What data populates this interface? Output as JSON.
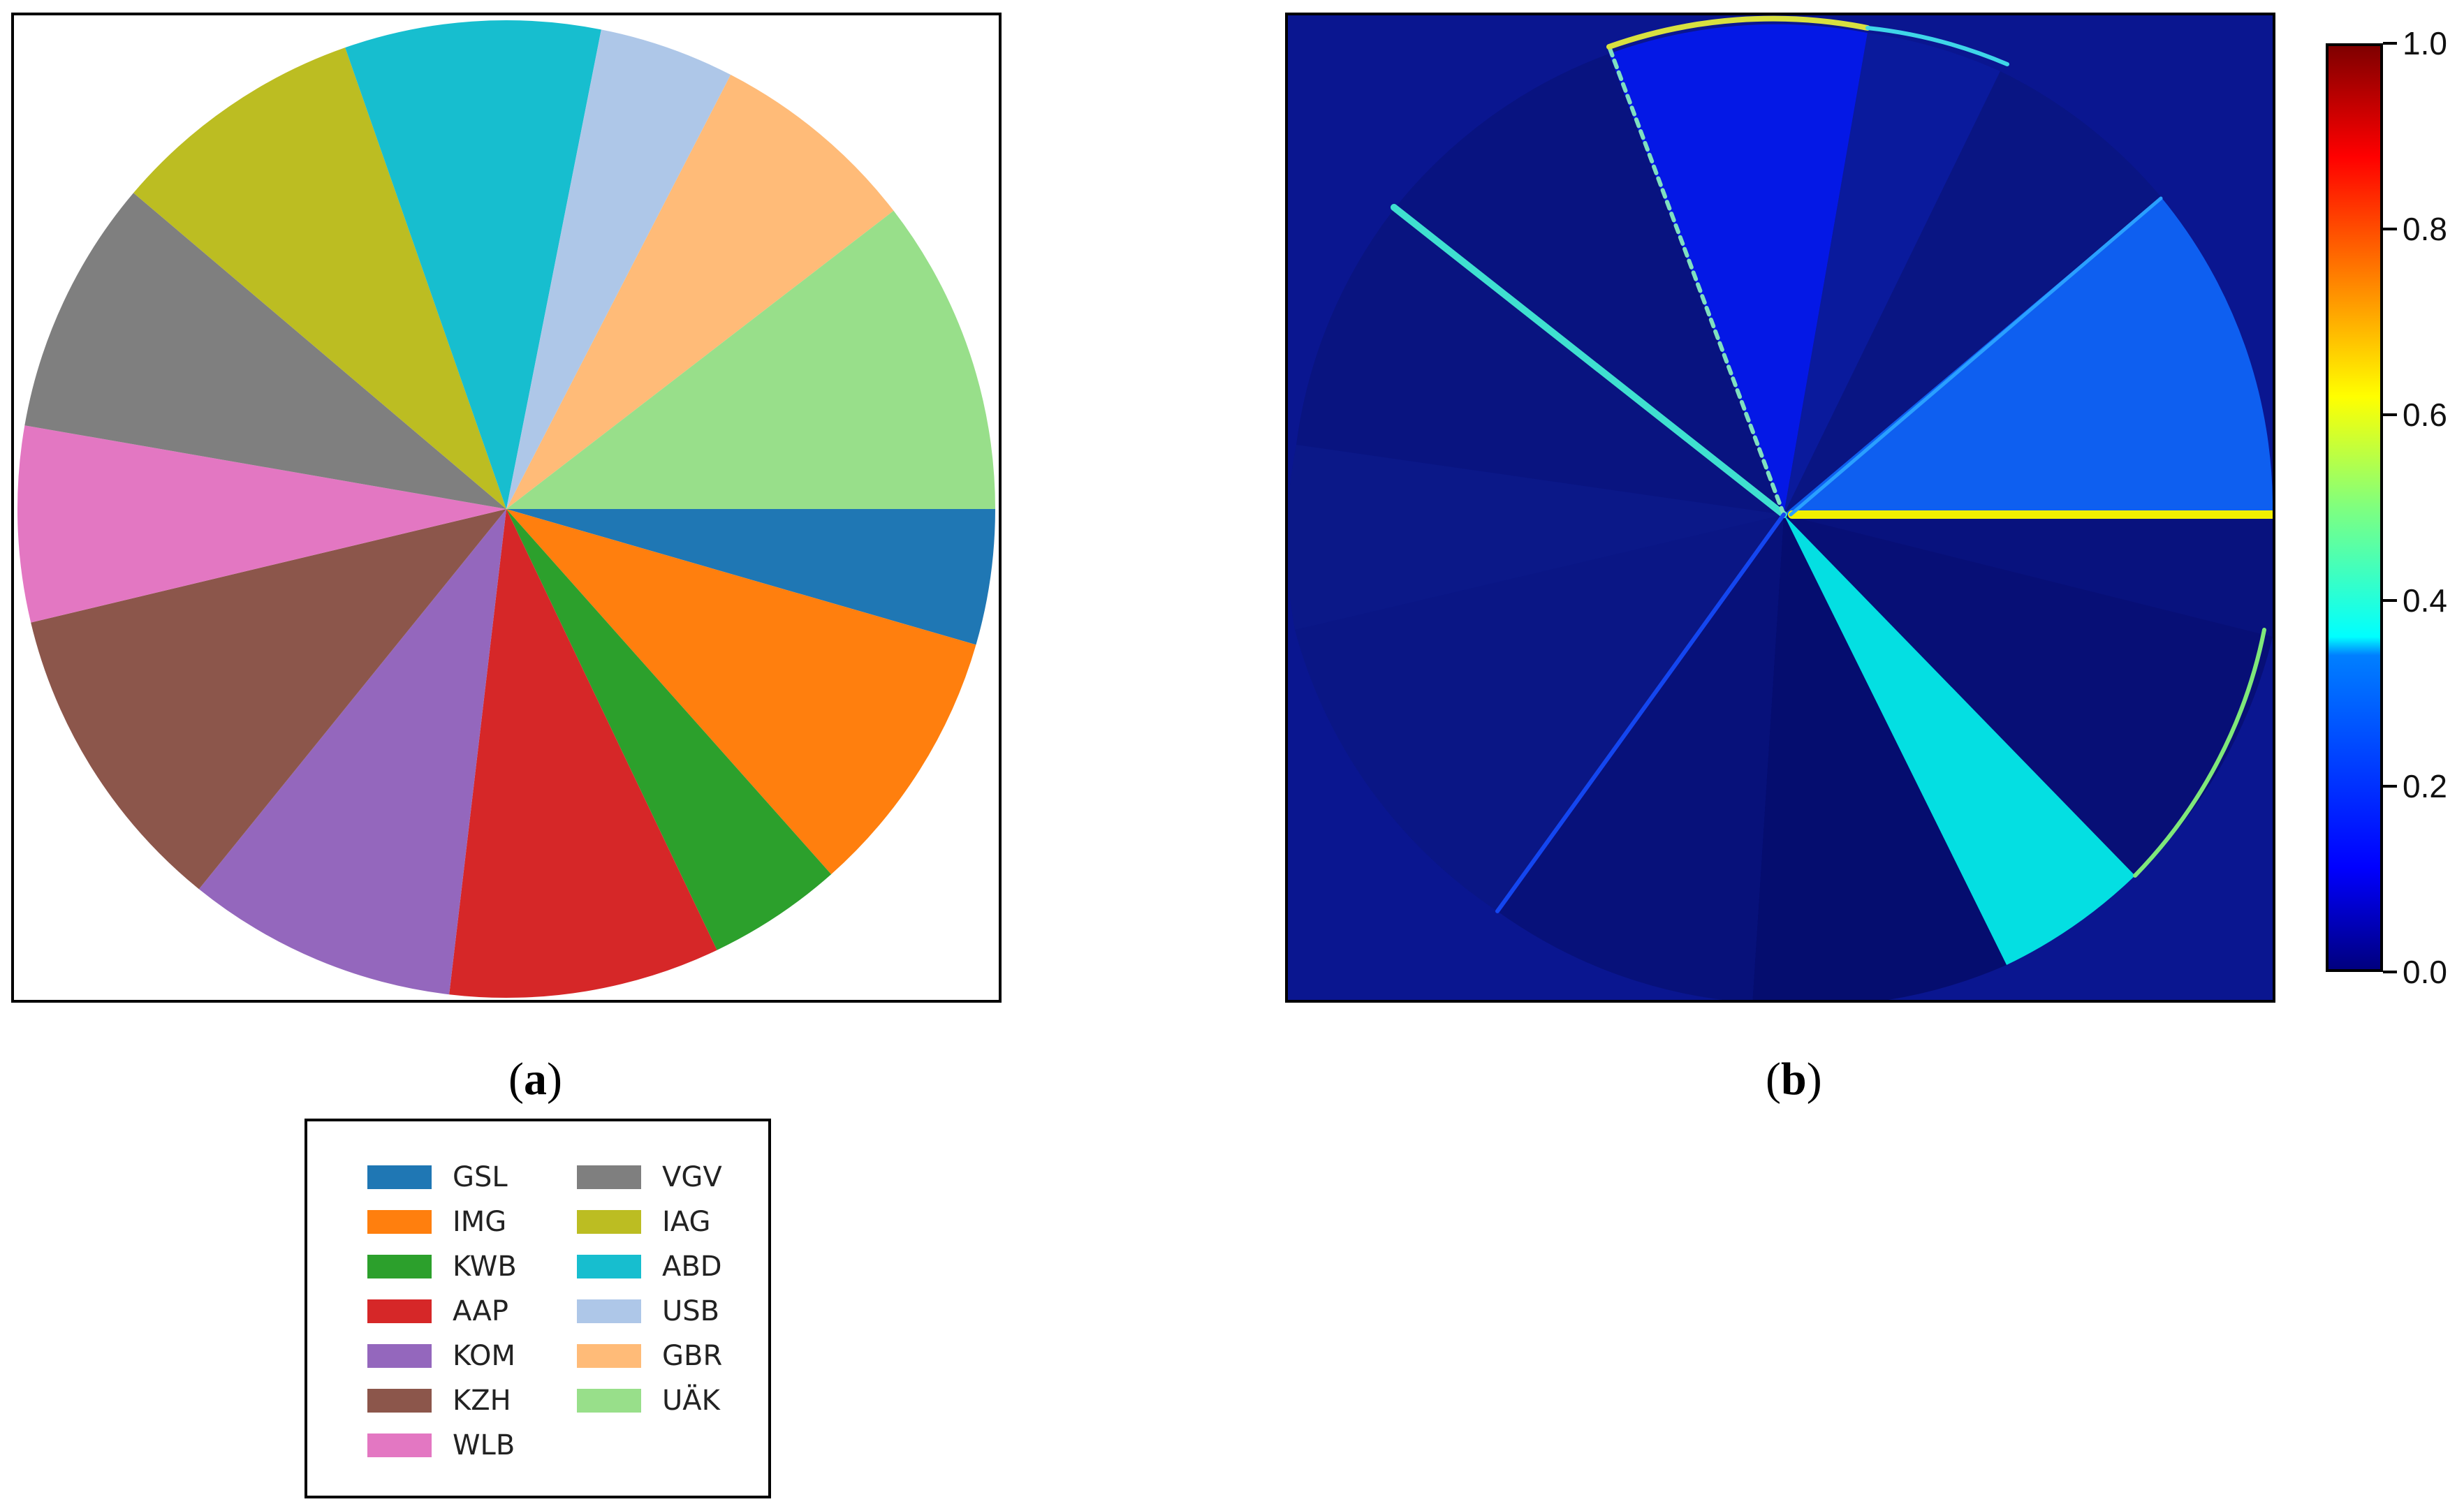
{
  "chart_data": [
    {
      "type": "pie",
      "panel": "a",
      "categories": [
        "GSL",
        "IMG",
        "KWB",
        "AAP",
        "KOM",
        "KZH",
        "WLB",
        "VGV",
        "IAG",
        "ABD",
        "USB",
        "GBR",
        "UÄK"
      ],
      "values": [
        4.5,
        9.0,
        4.5,
        9.0,
        9.0,
        10.5,
        6.5,
        8.5,
        8.5,
        8.5,
        4.5,
        7.0,
        10.5
      ],
      "colors": [
        "#1f77b4",
        "#ff7f0e",
        "#2ca02c",
        "#d62728",
        "#9467bd",
        "#8c564b",
        "#e377c2",
        "#7f7f7f",
        "#bcbd22",
        "#17becf",
        "#aec7e8",
        "#ffbb78",
        "#98df8a"
      ],
      "start_angle_deg": 0,
      "direction": "clockwise",
      "legend": {
        "placement": "below",
        "columns": 2,
        "entries": [
          "GSL",
          "IMG",
          "KWB",
          "AAP",
          "KOM",
          "KZH",
          "WLB",
          "VGV",
          "IAG",
          "ABD",
          "USB",
          "GBR",
          "UÄK"
        ]
      }
    },
    {
      "type": "heatmap",
      "panel": "b",
      "colormap": "jet",
      "colorbar": {
        "min": 0.0,
        "max": 1.0,
        "ticks": [
          "0.0",
          "0.2",
          "0.4",
          "0.6",
          "0.8",
          "1.0"
        ]
      }
    }
  ],
  "captions": {
    "a": {
      "open": "(",
      "letter": "a",
      "close": ")"
    },
    "b": {
      "open": "(",
      "letter": "b",
      "close": ")"
    }
  },
  "heatmap_fill": {
    "background": "#0a1690"
  }
}
